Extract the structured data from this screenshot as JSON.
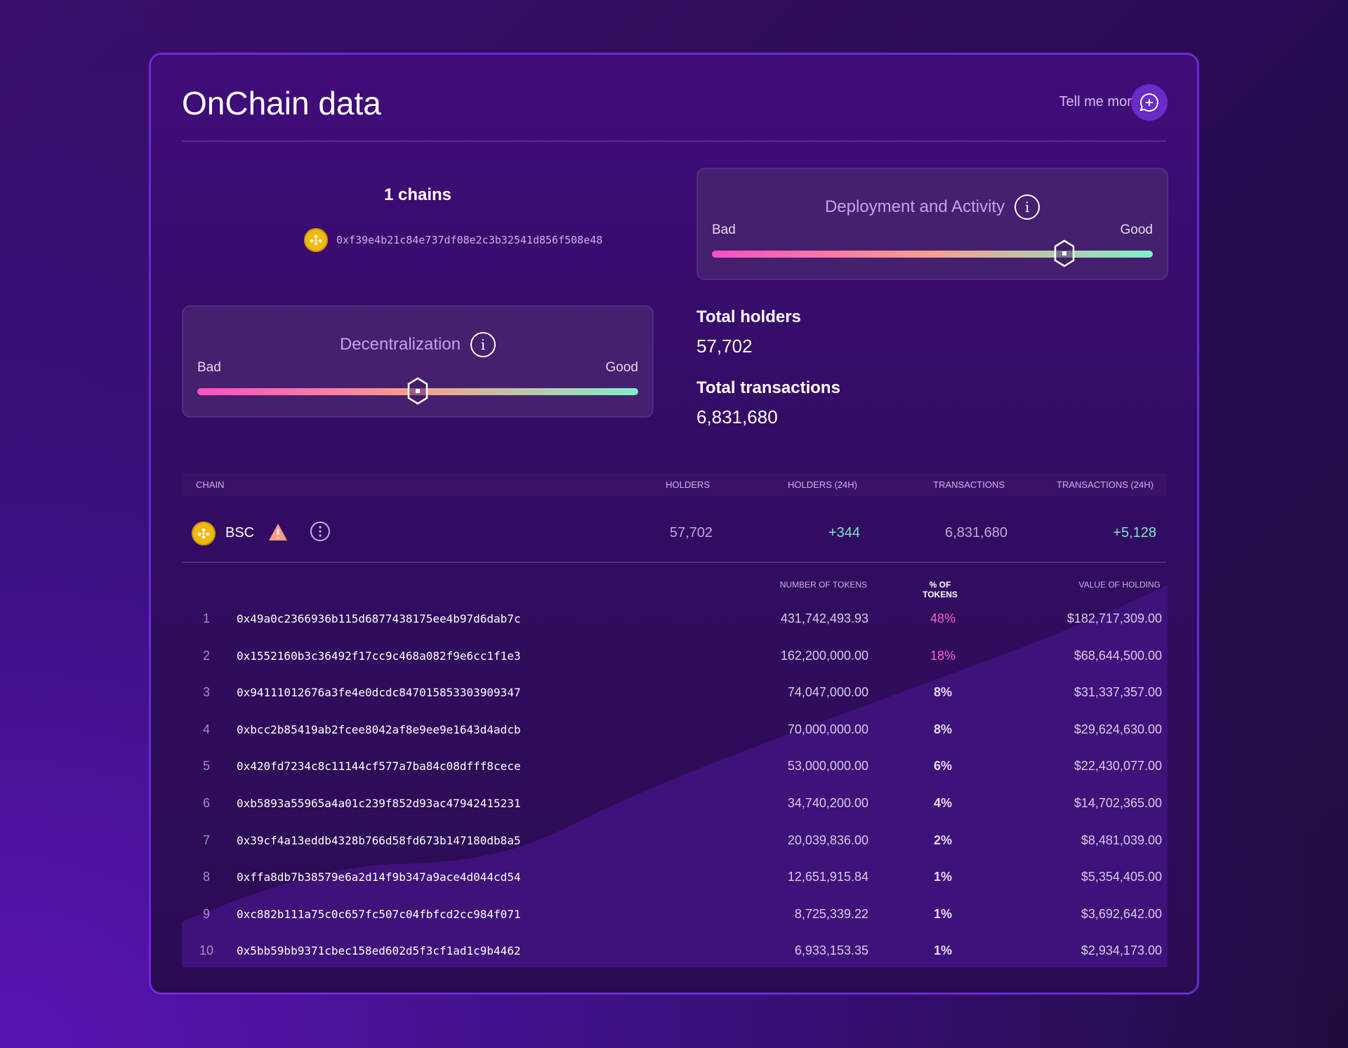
{
  "header": {
    "title": "OnChain data",
    "tell_me_more": "Tell me more"
  },
  "chains": {
    "count_label": "1 chains",
    "address": "0xf39e4b21c84e737df08e2c3b32541d856f508e48"
  },
  "scores": {
    "deployment": {
      "title": "Deployment and Activity",
      "bad": "Bad",
      "good": "Good",
      "value": 0.8
    },
    "decentralization": {
      "title": "Decentralization",
      "bad": "Bad",
      "good": "Good",
      "value": 0.5
    }
  },
  "stats": {
    "holders_label": "Total holders",
    "holders": "57,702",
    "tx_label": "Total transactions",
    "tx": "6,831,680"
  },
  "table": {
    "headers": {
      "chain": "CHAIN",
      "holders": "HOLDERS",
      "holders24": "HOLDERS (24H)",
      "tx": "TRANSACTIONS",
      "tx24": "TRANSACTIONS (24H)"
    },
    "row": {
      "chain": "BSC",
      "holders": "57,702",
      "holders24": "+344",
      "tx": "6,831,680",
      "tx24": "+5,128"
    },
    "sub_headers": {
      "tokens": "NUMBER OF TOKENS",
      "pct": "% OF TOKENS",
      "value": "VALUE OF HOLDING"
    },
    "holders": [
      {
        "i": "1",
        "addr": "0x49a0c2366936b115d6877438175ee4b97d6dab7c",
        "tokens": "431,742,493.93",
        "pct": "48%",
        "value": "$182,717,309.00"
      },
      {
        "i": "2",
        "addr": "0x1552160b3c36492f17cc9c468a082f9e6cc1f1e3",
        "tokens": "162,200,000.00",
        "pct": "18%",
        "value": "$68,644,500.00"
      },
      {
        "i": "3",
        "addr": "0x94111012676a3fe4e0dcdc847015853303909347",
        "tokens": "74,047,000.00",
        "pct": "8%",
        "value": "$31,337,357.00"
      },
      {
        "i": "4",
        "addr": "0xbcc2b85419ab2fcee8042af8e9ee9e1643d4adcb",
        "tokens": "70,000,000.00",
        "pct": "8%",
        "value": "$29,624,630.00"
      },
      {
        "i": "5",
        "addr": "0x420fd7234c8c11144cf577a7ba84c08dfff8cece",
        "tokens": "53,000,000.00",
        "pct": "6%",
        "value": "$22,430,077.00"
      },
      {
        "i": "6",
        "addr": "0xb5893a55965a4a01c239f852d93ac47942415231",
        "tokens": "34,740,200.00",
        "pct": "4%",
        "value": "$14,702,365.00"
      },
      {
        "i": "7",
        "addr": "0x39cf4a13eddb4328b766d58fd673b147180db8a5",
        "tokens": "20,039,836.00",
        "pct": "2%",
        "value": "$8,481,039.00"
      },
      {
        "i": "8",
        "addr": "0xffa8db7b38579e6a2d14f9b347a9ace4d044cd54",
        "tokens": "12,651,915.84",
        "pct": "1%",
        "value": "$5,354,405.00"
      },
      {
        "i": "9",
        "addr": "0xc882b111a75c0c657fc507c04fbfcd2cc984f071",
        "tokens": "8,725,339.22",
        "pct": "1%",
        "value": "$3,692,642.00"
      },
      {
        "i": "10",
        "addr": "0x5bb59bb9371cbec158ed602d5f3cf1ad1c9b4462",
        "tokens": "6,933,153.35",
        "pct": "1%",
        "value": "$2,934,173.00"
      }
    ]
  },
  "colors": {
    "accent": "#6a2bd6",
    "highlight_pct": "#ff5ec8",
    "positive": "#7ee8c4"
  }
}
